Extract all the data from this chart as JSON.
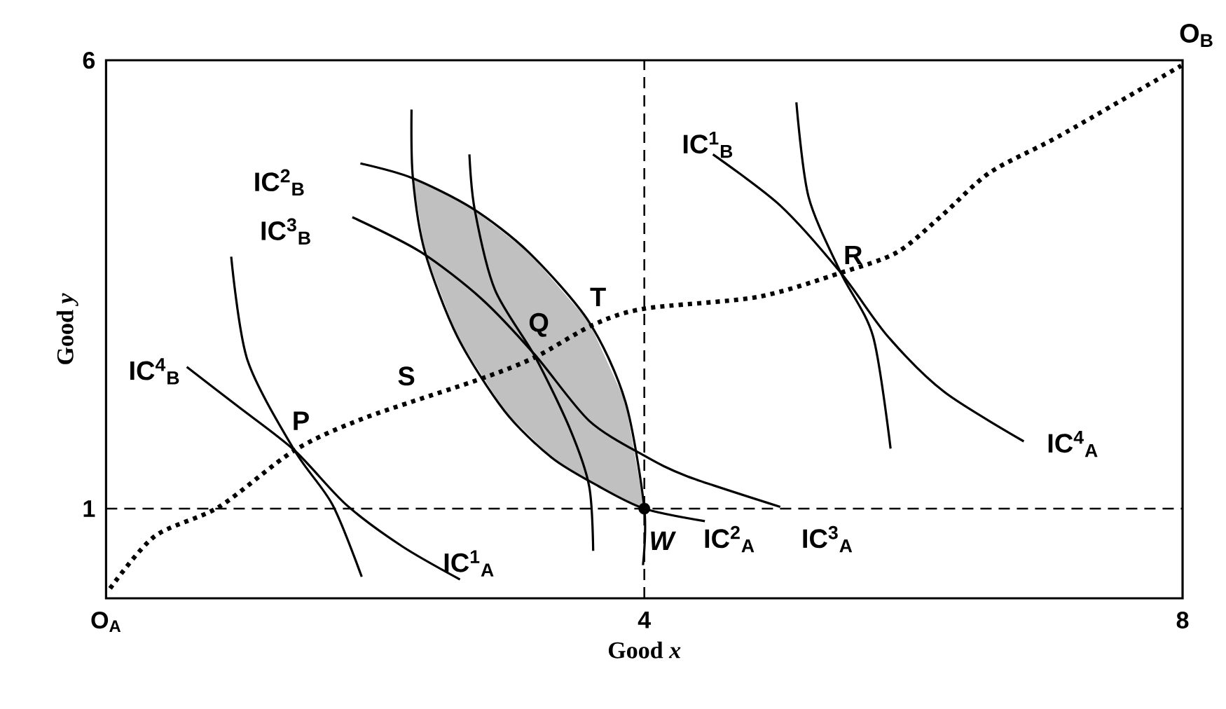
{
  "chart_data": {
    "type": "line",
    "xlabel": "Good *x*",
    "ylabel": "Good *y*",
    "xlim": [
      0,
      8
    ],
    "ylim": [
      0,
      6
    ],
    "xticks": [
      {
        "value": 0,
        "label": "O$_{A}$"
      },
      4,
      8
    ],
    "yticks": [
      1,
      6
    ],
    "series": [
      {
        "type": "area",
        "color": "#c0c0c0",
        "x": [
          2.28,
          2.37,
          2.61,
          2.96,
          3.31,
          3.66,
          4.0,
          3.86,
          3.59,
          3.14,
          2.72,
          2.28
        ],
        "values": [
          4.69,
          3.86,
          2.92,
          2.09,
          1.57,
          1.25,
          1.0,
          2.19,
          3.08,
          3.86,
          4.35,
          4.69
        ]
      },
      {
        "color": "#000000",
        "line_style": "dotted",
        "x": [
          0.03,
          0.36,
          0.84,
          1.4,
          1.92,
          2.79,
          3.19,
          3.62,
          4.0,
          4.84,
          5.46,
          5.88,
          6.22,
          6.57,
          7.09,
          7.99
        ],
        "values": [
          0.11,
          0.69,
          1.02,
          1.65,
          2.01,
          2.45,
          2.69,
          3.05,
          3.23,
          3.36,
          3.63,
          3.86,
          4.28,
          4.75,
          5.16,
          5.94
        ]
      },
      {
        "color": "#000000",
        "line_style": "solid",
        "x": [
          2.27,
          2.28,
          2.37,
          2.61,
          2.96,
          3.31,
          3.66,
          4.0,
          4.45
        ],
        "values": [
          5.45,
          4.69,
          3.86,
          2.92,
          2.09,
          1.57,
          1.25,
          1.0,
          0.86
        ]
      },
      {
        "color": "#000000",
        "line_style": "solid",
        "x": [
          1.89,
          2.27,
          2.72,
          3.14,
          3.59,
          3.86,
          4.0,
          3.99
        ],
        "values": [
          4.85,
          4.69,
          4.35,
          3.86,
          3.08,
          2.19,
          1.0,
          0.37
        ]
      },
      {
        "color": "#000000",
        "line_style": "solid",
        "x": [
          1.83,
          2.34,
          2.79,
          3.19,
          3.59,
          4.0,
          4.32,
          5.01
        ],
        "values": [
          4.25,
          3.86,
          3.34,
          2.71,
          1.98,
          1.59,
          1.36,
          1.02
        ]
      },
      {
        "color": "#000000",
        "line_style": "solid",
        "x": [
          2.7,
          2.74,
          2.89,
          3.19,
          3.45,
          3.59,
          3.62
        ],
        "values": [
          4.95,
          4.33,
          3.44,
          2.69,
          1.88,
          1.25,
          0.53
        ]
      },
      {
        "color": "#000000",
        "line_style": "solid",
        "x": [
          0.93,
          1.05,
          1.4,
          1.68,
          1.9
        ],
        "values": [
          3.81,
          2.66,
          1.65,
          1.05,
          0.24
        ]
      },
      {
        "color": "#000000",
        "line_style": "solid",
        "x": [
          0.6,
          0.98,
          1.4,
          1.78,
          2.2,
          2.63
        ],
        "values": [
          2.58,
          2.14,
          1.65,
          1.05,
          0.58,
          0.21
        ]
      },
      {
        "color": "#000000",
        "line_style": "solid",
        "x": [
          4.51,
          5.01,
          5.46,
          5.81,
          6.23,
          6.82
        ],
        "values": [
          4.95,
          4.38,
          3.63,
          2.92,
          2.3,
          1.75
        ]
      },
      {
        "color": "#000000",
        "line_style": "solid",
        "x": [
          5.13,
          5.22,
          5.46,
          5.7,
          5.83
        ],
        "values": [
          5.53,
          4.48,
          3.63,
          2.92,
          1.67
        ]
      },
      {
        "type": "scatter",
        "color": "#000000",
        "x": [
          4
        ],
        "values": [
          1
        ]
      }
    ],
    "ref_lines": [
      {
        "axis": "x",
        "value": 4,
        "line_style": "dashed"
      },
      {
        "axis": "y",
        "value": 1,
        "line_style": "dashed"
      }
    ],
    "annotations": [
      "IC$^{2}$$_{B}$",
      "IC$^{3}$$_{B}$",
      "IC$^{4}$$_{B}$",
      "IC$^{1}$$_{B}$",
      "P",
      "S",
      "Q",
      "T",
      "R",
      "IC$^{4}$$_{A}$",
      "IC$^{1}$$_{A}$",
      "*W*",
      "IC$^{2}$$_{A}$",
      "IC$^{3}$$_{A}$",
      "O$_{B}$"
    ]
  }
}
